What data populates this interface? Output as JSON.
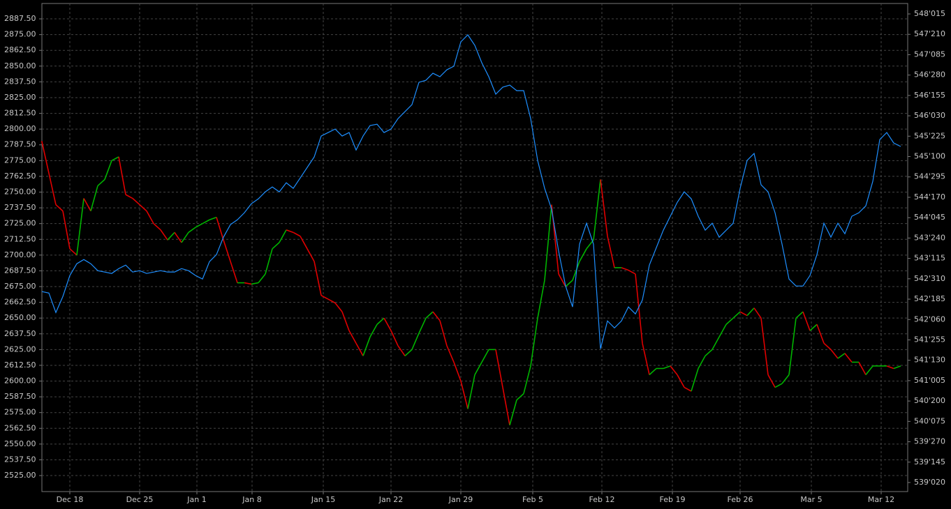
{
  "chart_data": {
    "type": "line",
    "xlim": [
      0,
      124
    ],
    "xticks": [
      {
        "value": 4,
        "label": "Dec 18"
      },
      {
        "value": 14,
        "label": "Dec 25"
      },
      {
        "value": 22.2,
        "label": "Jan 1"
      },
      {
        "value": 30.1,
        "label": "Jan 8"
      },
      {
        "value": 40.3,
        "label": "Jan 15"
      },
      {
        "value": 50,
        "label": "Jan 22"
      },
      {
        "value": 60,
        "label": "Jan 29"
      },
      {
        "value": 70.3,
        "label": "Feb 5"
      },
      {
        "value": 80.2,
        "label": "Feb 12"
      },
      {
        "value": 90.3,
        "label": "Feb 19"
      },
      {
        "value": 100,
        "label": "Feb 26"
      },
      {
        "value": 110.2,
        "label": "Mar 5"
      },
      {
        "value": 120.2,
        "label": "Mar 12"
      }
    ],
    "ylim": [
      2512.3,
      2899.7
    ],
    "yticks": [
      {
        "value": 2887.5,
        "label": "2887.50"
      },
      {
        "value": 2875,
        "label": "2875.00"
      },
      {
        "value": 2862.5,
        "label": "2862.50"
      },
      {
        "value": 2850,
        "label": "2850.00"
      },
      {
        "value": 2837.5,
        "label": "2837.50"
      },
      {
        "value": 2825,
        "label": "2825.00"
      },
      {
        "value": 2812.5,
        "label": "2812.50"
      },
      {
        "value": 2800,
        "label": "2800.00"
      },
      {
        "value": 2787.5,
        "label": "2787.50"
      },
      {
        "value": 2775,
        "label": "2775.00"
      },
      {
        "value": 2762.5,
        "label": "2762.50"
      },
      {
        "value": 2750,
        "label": "2750.00"
      },
      {
        "value": 2737.5,
        "label": "2737.50"
      },
      {
        "value": 2725,
        "label": "2725.00"
      },
      {
        "value": 2712.5,
        "label": "2712.50"
      },
      {
        "value": 2700,
        "label": "2700.00"
      },
      {
        "value": 2687.5,
        "label": "2687.50"
      },
      {
        "value": 2675,
        "label": "2675.00"
      },
      {
        "value": 2662.5,
        "label": "2662.50"
      },
      {
        "value": 2650,
        "label": "2650.00"
      },
      {
        "value": 2637.5,
        "label": "2637.50"
      },
      {
        "value": 2625,
        "label": "2625.00"
      },
      {
        "value": 2612.5,
        "label": "2612.50"
      },
      {
        "value": 2600,
        "label": "2600.00"
      },
      {
        "value": 2587.5,
        "label": "2587.50"
      },
      {
        "value": 2575,
        "label": "2575.00"
      },
      {
        "value": 2562.5,
        "label": "2562.50"
      },
      {
        "value": 2550,
        "label": "2550.00"
      },
      {
        "value": 2537.5,
        "label": "2537.50"
      },
      {
        "value": 2525,
        "label": "2525.00"
      }
    ],
    "y2lim": [
      538.8886,
      548.2475
    ],
    "y2ticks": [
      {
        "value": 548.046875,
        "label": "548'015"
      },
      {
        "value": 547.65625,
        "label": "547'210"
      },
      {
        "value": 547.265625,
        "label": "547'085"
      },
      {
        "value": 546.875,
        "label": "546'280"
      },
      {
        "value": 546.484375,
        "label": "546'155"
      },
      {
        "value": 546.09375,
        "label": "546'030"
      },
      {
        "value": 545.703125,
        "label": "545'225"
      },
      {
        "value": 545.3125,
        "label": "545'100"
      },
      {
        "value": 544.921875,
        "label": "544'295"
      },
      {
        "value": 544.53125,
        "label": "544'170"
      },
      {
        "value": 544.140625,
        "label": "544'045"
      },
      {
        "value": 543.75,
        "label": "543'240"
      },
      {
        "value": 543.359375,
        "label": "543'115"
      },
      {
        "value": 542.96875,
        "label": "542'310"
      },
      {
        "value": 542.578125,
        "label": "542'185"
      },
      {
        "value": 542.1875,
        "label": "542'060"
      },
      {
        "value": 541.796875,
        "label": "541'255"
      },
      {
        "value": 541.40625,
        "label": "541'130"
      },
      {
        "value": 541.015625,
        "label": "541'005"
      },
      {
        "value": 540.625,
        "label": "540'200"
      },
      {
        "value": 540.234375,
        "label": "540'075"
      },
      {
        "value": 539.84375,
        "label": "539'270"
      },
      {
        "value": 539.453125,
        "label": "539'145"
      },
      {
        "value": 539.0625,
        "label": "539'020"
      }
    ],
    "grid": true,
    "series": [
      {
        "color": "#e00000",
        "up_color": "#00b400",
        "values": [
          2790,
          2765,
          2740,
          2735,
          2705,
          2700,
          2745,
          2735,
          2755,
          2760,
          2775,
          2778,
          2748,
          2745,
          2740,
          2735,
          2725,
          2720,
          2712,
          2718,
          2710,
          2718,
          2722,
          2725,
          2728,
          2730,
          2712,
          2695,
          2678,
          2678,
          2677,
          2678,
          2685,
          2705,
          2710,
          2720,
          2718,
          2715,
          2705,
          2695,
          2668,
          2665,
          2662,
          2655,
          2640,
          2630,
          2620,
          2635,
          2645,
          2650,
          2640,
          2628,
          2620,
          2625,
          2638,
          2650,
          2655,
          2648,
          2628,
          2615,
          2600,
          2578,
          2605,
          2615,
          2625,
          2625,
          2595,
          2565,
          2585,
          2590,
          2612,
          2650,
          2680,
          2740,
          2685,
          2675,
          2680,
          2695,
          2705,
          2712,
          2760,
          2715,
          2690,
          2690,
          2688,
          2685,
          2630,
          2605,
          2610,
          2610,
          2612,
          2605,
          2595,
          2592,
          2610,
          2620,
          2625,
          2635,
          2645,
          2650,
          2655,
          2652,
          2658,
          2650,
          2605,
          2595,
          2598,
          2605,
          2650,
          2655,
          2640,
          2645,
          2630,
          2625,
          2618,
          2622,
          2615,
          2615,
          2605,
          2612,
          2612,
          2612,
          2610,
          2612
        ]
      },
      {
        "color": "#1e8fff",
        "axis": "y2",
        "values": [
          542.723,
          542.696,
          542.322,
          542.629,
          543.031,
          543.258,
          543.338,
          543.258,
          543.124,
          543.098,
          543.071,
          543.164,
          543.231,
          543.098,
          543.124,
          543.071,
          543.098,
          543.124,
          543.098,
          543.098,
          543.164,
          543.124,
          543.031,
          542.964,
          543.298,
          543.432,
          543.766,
          544.007,
          544.101,
          544.235,
          544.408,
          544.502,
          544.636,
          544.73,
          544.636,
          544.81,
          544.703,
          544.903,
          545.104,
          545.305,
          545.706,
          545.773,
          545.84,
          545.706,
          545.773,
          545.438,
          545.706,
          545.907,
          545.933,
          545.773,
          545.84,
          546.04,
          546.174,
          546.308,
          546.736,
          546.776,
          546.91,
          546.843,
          546.977,
          547.044,
          547.512,
          547.646,
          547.445,
          547.111,
          546.843,
          546.509,
          546.642,
          546.683,
          546.576,
          546.576,
          546.04,
          545.238,
          544.703,
          544.301,
          543.499,
          542.83,
          542.429,
          543.633,
          544.034,
          543.633,
          541.626,
          542.161,
          542.027,
          542.161,
          542.429,
          542.295,
          542.562,
          543.231,
          543.566,
          543.9,
          544.168,
          544.435,
          544.636,
          544.502,
          544.168,
          543.9,
          544.034,
          543.766,
          543.9,
          544.034,
          544.703,
          545.238,
          545.372,
          544.77,
          544.636,
          544.235,
          543.633,
          542.964,
          542.83,
          542.83,
          543.031,
          543.432,
          544.034,
          543.766,
          544.034,
          543.833,
          544.168,
          544.235,
          544.368,
          544.837,
          545.639,
          545.773,
          545.572,
          545.505
        ]
      }
    ]
  }
}
